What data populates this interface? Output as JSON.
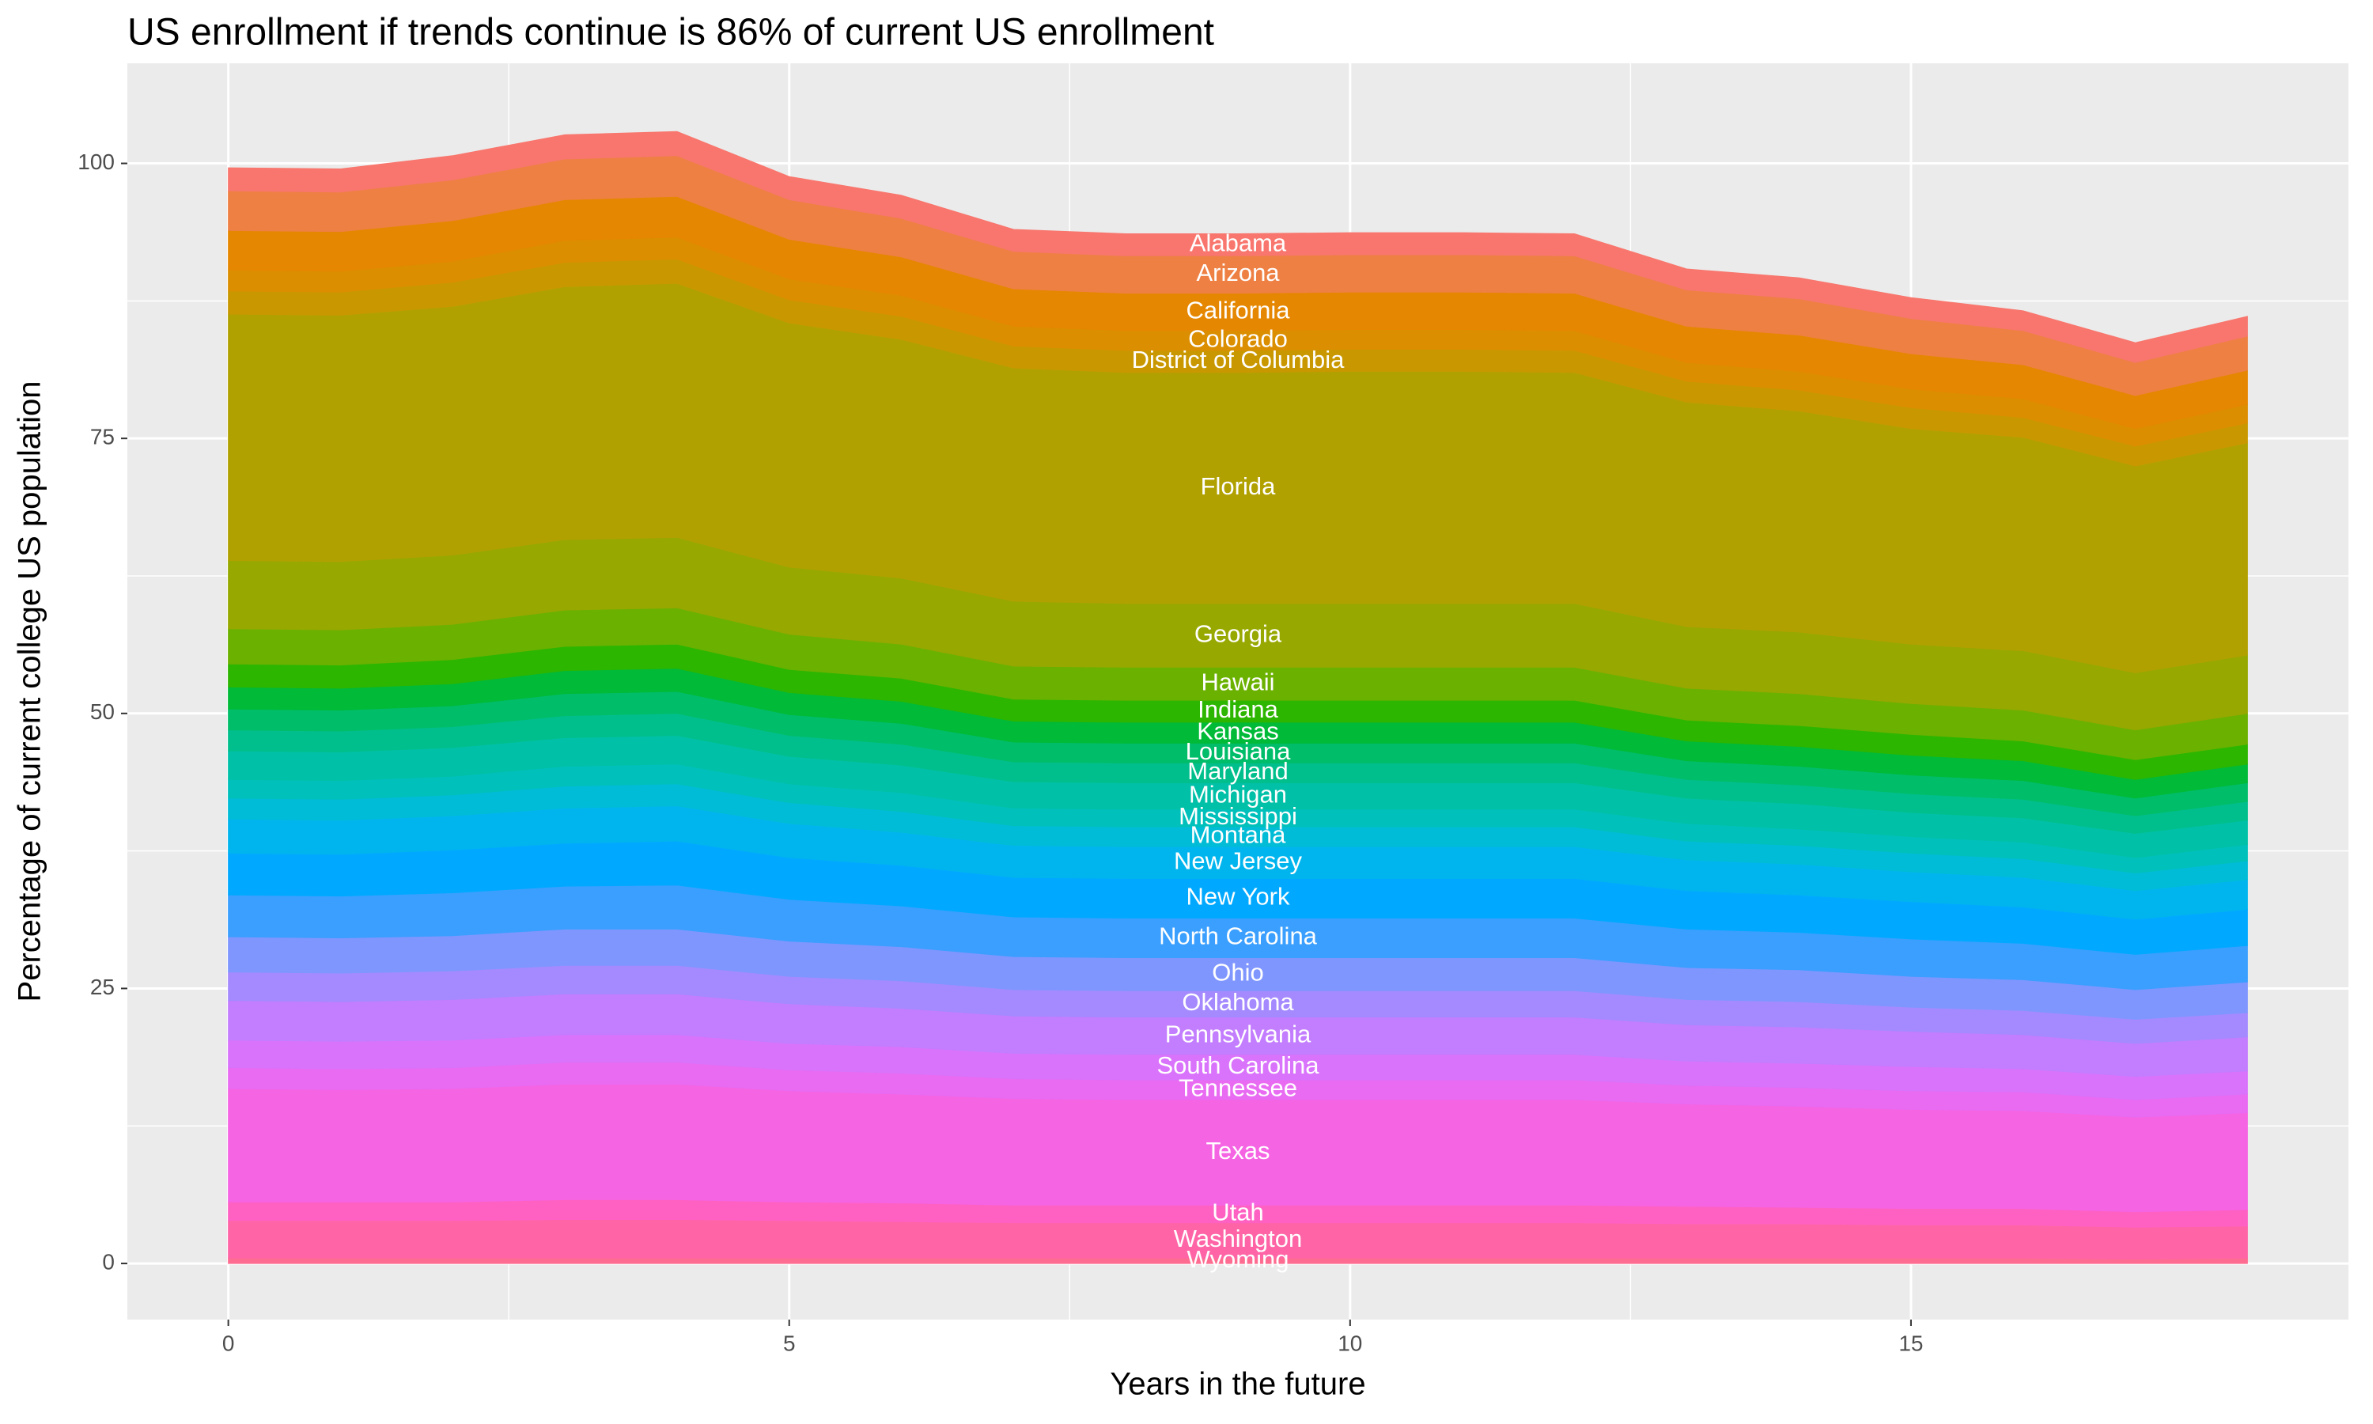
{
  "chart_data": {
    "type": "stacked_area",
    "title": "US enrollment if trends continue is 86% of current US enrollment",
    "x_label": "Years in the future",
    "y_label": "Percentage of current college US population",
    "x": [
      0,
      1,
      2,
      3,
      4,
      5,
      6,
      7,
      8,
      9,
      10,
      11,
      12,
      13,
      14,
      15,
      16,
      17,
      18
    ],
    "xlim": [
      -0.9,
      18.9
    ],
    "xticks": [
      0,
      5,
      10,
      15
    ],
    "ylim": [
      -5.1,
      109.1
    ],
    "yticks": [
      0,
      25,
      50,
      75,
      100
    ],
    "grid": true,
    "label_x": 9,
    "series": [
      {
        "name": "Alabama",
        "color": "#F8766D",
        "values": [
          2.1,
          2.1,
          2.2,
          2.2,
          2.2,
          2.1,
          2.1,
          2.0,
          2.0,
          2.0,
          2.0,
          2.0,
          2.0,
          1.9,
          1.9,
          1.9,
          1.8,
          1.8,
          1.8
        ]
      },
      {
        "name": "Arizona",
        "color": "#EE8043",
        "values": [
          3.6,
          3.6,
          3.7,
          3.7,
          3.7,
          3.6,
          3.5,
          3.4,
          3.4,
          3.4,
          3.4,
          3.4,
          3.4,
          3.3,
          3.3,
          3.2,
          3.1,
          3.0,
          3.1
        ]
      },
      {
        "name": "California",
        "color": "#E58700",
        "values": [
          3.6,
          3.6,
          3.7,
          3.7,
          3.7,
          3.6,
          3.5,
          3.4,
          3.4,
          3.4,
          3.4,
          3.4,
          3.4,
          3.3,
          3.3,
          3.2,
          3.1,
          3.0,
          3.1
        ]
      },
      {
        "name": "Colorado",
        "color": "#DB8E00",
        "values": [
          1.9,
          1.9,
          1.9,
          2.0,
          2.0,
          1.9,
          1.9,
          1.8,
          1.8,
          1.8,
          1.8,
          1.8,
          1.8,
          1.7,
          1.7,
          1.7,
          1.7,
          1.6,
          1.7
        ]
      },
      {
        "name": "District of Columbia",
        "color": "#C99800",
        "values": [
          2.1,
          2.1,
          2.2,
          2.2,
          2.2,
          2.1,
          2.1,
          2.0,
          2.0,
          2.0,
          2.0,
          2.0,
          2.0,
          1.9,
          1.9,
          1.9,
          1.8,
          1.8,
          1.8
        ]
      },
      {
        "name": "Florida",
        "color": "#B1A100",
        "values": [
          22.4,
          22.4,
          22.6,
          23.0,
          23.1,
          22.2,
          21.7,
          21.2,
          21.0,
          21.0,
          21.1,
          21.1,
          21.0,
          20.4,
          20.1,
          19.6,
          19.4,
          18.8,
          19.3
        ]
      },
      {
        "name": "Georgia",
        "color": "#97A800",
        "values": [
          6.2,
          6.2,
          6.3,
          6.4,
          6.4,
          6.1,
          6.0,
          5.9,
          5.8,
          5.8,
          5.8,
          5.8,
          5.8,
          5.6,
          5.6,
          5.4,
          5.4,
          5.2,
          5.3
        ]
      },
      {
        "name": "Hawaii",
        "color": "#6BB100",
        "values": [
          3.2,
          3.2,
          3.2,
          3.3,
          3.3,
          3.2,
          3.1,
          3.0,
          3.0,
          3.0,
          3.0,
          3.0,
          3.0,
          2.9,
          2.9,
          2.8,
          2.8,
          2.7,
          2.8
        ]
      },
      {
        "name": "Indiana",
        "color": "#2DB600",
        "values": [
          2.1,
          2.1,
          2.2,
          2.2,
          2.2,
          2.1,
          2.1,
          2.0,
          2.0,
          2.0,
          2.0,
          2.0,
          2.0,
          1.9,
          1.9,
          1.9,
          1.8,
          1.8,
          1.8
        ]
      },
      {
        "name": "Kansas",
        "color": "#00BA38",
        "values": [
          2.0,
          2.0,
          2.0,
          2.1,
          2.1,
          2.0,
          2.0,
          1.9,
          1.9,
          1.9,
          1.9,
          1.9,
          1.9,
          1.8,
          1.8,
          1.8,
          1.8,
          1.7,
          1.7
        ]
      },
      {
        "name": "Louisiana",
        "color": "#00BD6A",
        "values": [
          1.9,
          1.9,
          1.9,
          2.0,
          2.0,
          1.9,
          1.9,
          1.8,
          1.8,
          1.8,
          1.8,
          1.8,
          1.8,
          1.7,
          1.7,
          1.7,
          1.7,
          1.6,
          1.7
        ]
      },
      {
        "name": "Maryland",
        "color": "#00BF8C",
        "values": [
          1.9,
          1.9,
          1.9,
          2.0,
          2.0,
          1.9,
          1.9,
          1.8,
          1.8,
          1.8,
          1.8,
          1.8,
          1.8,
          1.7,
          1.7,
          1.7,
          1.7,
          1.6,
          1.7
        ]
      },
      {
        "name": "Michigan",
        "color": "#00C0A7",
        "values": [
          2.6,
          2.6,
          2.6,
          2.6,
          2.6,
          2.5,
          2.5,
          2.4,
          2.4,
          2.4,
          2.4,
          2.4,
          2.4,
          2.3,
          2.3,
          2.2,
          2.2,
          2.2,
          2.2
        ]
      },
      {
        "name": "Mississippi",
        "color": "#00C0BB",
        "values": [
          1.7,
          1.7,
          1.7,
          1.8,
          1.8,
          1.7,
          1.7,
          1.6,
          1.6,
          1.6,
          1.6,
          1.6,
          1.6,
          1.6,
          1.5,
          1.5,
          1.5,
          1.4,
          1.5
        ]
      },
      {
        "name": "Montana",
        "color": "#00BCD6",
        "values": [
          1.9,
          1.9,
          1.9,
          2.0,
          2.0,
          1.9,
          1.9,
          1.8,
          1.8,
          1.8,
          1.8,
          1.8,
          1.8,
          1.7,
          1.7,
          1.7,
          1.7,
          1.6,
          1.7
        ]
      },
      {
        "name": "New Jersey",
        "color": "#00B5EE",
        "values": [
          3.1,
          3.1,
          3.1,
          3.2,
          3.2,
          3.1,
          3.0,
          2.9,
          2.9,
          2.9,
          2.9,
          2.9,
          2.9,
          2.8,
          2.8,
          2.7,
          2.7,
          2.6,
          2.7
        ]
      },
      {
        "name": "New York",
        "color": "#00A9FF",
        "values": [
          3.8,
          3.8,
          3.9,
          3.9,
          4.0,
          3.8,
          3.7,
          3.6,
          3.6,
          3.6,
          3.6,
          3.6,
          3.6,
          3.5,
          3.4,
          3.4,
          3.3,
          3.2,
          3.3
        ]
      },
      {
        "name": "North Carolina",
        "color": "#3A9FFF",
        "values": [
          3.8,
          3.8,
          3.9,
          3.9,
          4.0,
          3.8,
          3.7,
          3.6,
          3.6,
          3.6,
          3.6,
          3.6,
          3.6,
          3.5,
          3.4,
          3.4,
          3.3,
          3.2,
          3.3
        ]
      },
      {
        "name": "Ohio",
        "color": "#7F96FF",
        "values": [
          3.2,
          3.2,
          3.2,
          3.3,
          3.3,
          3.2,
          3.1,
          3.0,
          3.0,
          3.0,
          3.0,
          3.0,
          3.0,
          2.9,
          2.9,
          2.8,
          2.8,
          2.7,
          2.8
        ]
      },
      {
        "name": "Oklahoma",
        "color": "#A58AFF",
        "values": [
          2.6,
          2.6,
          2.6,
          2.6,
          2.6,
          2.5,
          2.5,
          2.4,
          2.4,
          2.4,
          2.4,
          2.4,
          2.4,
          2.3,
          2.3,
          2.2,
          2.2,
          2.2,
          2.2
        ]
      },
      {
        "name": "Pennsylvania",
        "color": "#C37DFF",
        "values": [
          3.6,
          3.6,
          3.7,
          3.7,
          3.7,
          3.6,
          3.5,
          3.4,
          3.4,
          3.4,
          3.4,
          3.4,
          3.4,
          3.3,
          3.3,
          3.2,
          3.1,
          3.0,
          3.1
        ]
      },
      {
        "name": "South Carolina",
        "color": "#D973FB",
        "values": [
          2.5,
          2.5,
          2.5,
          2.5,
          2.5,
          2.4,
          2.4,
          2.3,
          2.3,
          2.3,
          2.3,
          2.3,
          2.3,
          2.2,
          2.2,
          2.2,
          2.1,
          2.1,
          2.1
        ]
      },
      {
        "name": "Tennessee",
        "color": "#E86BF2",
        "values": [
          1.9,
          1.9,
          1.9,
          2.0,
          2.0,
          1.9,
          1.9,
          1.8,
          1.8,
          1.8,
          1.8,
          1.8,
          1.8,
          1.7,
          1.7,
          1.7,
          1.7,
          1.6,
          1.7
        ]
      },
      {
        "name": "Texas",
        "color": "#F564E3",
        "values": [
          10.3,
          10.2,
          10.3,
          10.5,
          10.5,
          10.1,
          9.9,
          9.7,
          9.6,
          9.6,
          9.6,
          9.6,
          9.6,
          9.3,
          9.2,
          9.0,
          8.9,
          8.6,
          8.8
        ]
      },
      {
        "name": "Utah",
        "color": "#FF61C3",
        "values": [
          1.7,
          1.7,
          1.7,
          1.8,
          1.8,
          1.7,
          1.7,
          1.6,
          1.6,
          1.6,
          1.6,
          1.6,
          1.6,
          1.6,
          1.5,
          1.5,
          1.5,
          1.4,
          1.5
        ]
      },
      {
        "name": "Washington",
        "color": "#FF65A6",
        "values": [
          3.4,
          3.4,
          3.4,
          3.5,
          3.5,
          3.4,
          3.3,
          3.2,
          3.2,
          3.2,
          3.2,
          3.2,
          3.2,
          3.1,
          3.1,
          3.0,
          3.0,
          2.9,
          2.9
        ]
      },
      {
        "name": "Wyoming",
        "color": "#FF6C91",
        "values": [
          0.5,
          0.5,
          0.5,
          0.5,
          0.5,
          0.5,
          0.5,
          0.5,
          0.5,
          0.5,
          0.5,
          0.5,
          0.5,
          0.5,
          0.5,
          0.5,
          0.5,
          0.4,
          0.5
        ]
      }
    ]
  }
}
